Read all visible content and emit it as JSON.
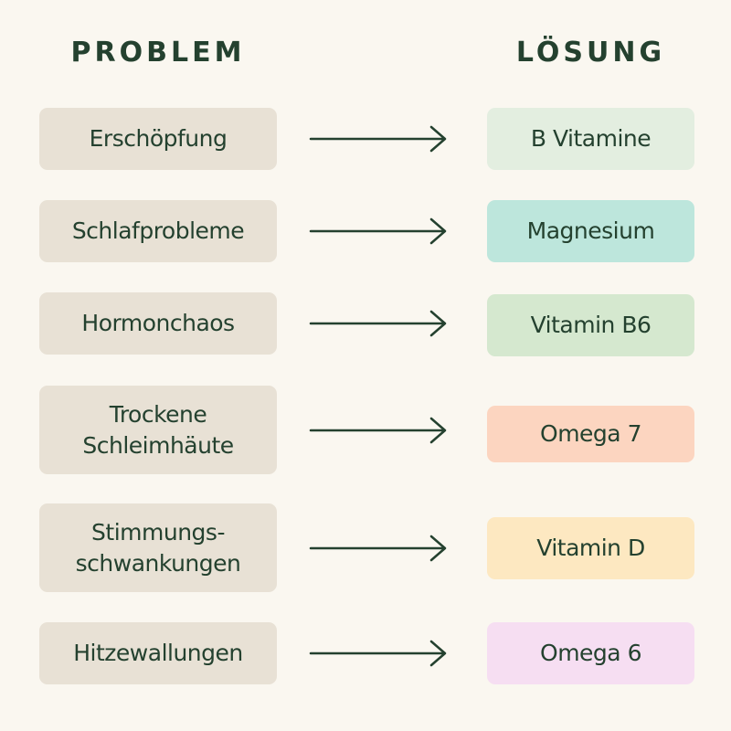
{
  "headers": {
    "problem": "PROBLEM",
    "solution": "LÖSUNG"
  },
  "colors": {
    "background": "#faf7f0",
    "problem_box": "#e8e1d5",
    "text": "#24412f"
  },
  "rows": [
    {
      "problem": "Erschöpfung",
      "solution": "B Vitamine",
      "solution_color": "#e3eee0"
    },
    {
      "problem": "Schlafprobleme",
      "solution": "Magnesium",
      "solution_color": "#bde6dc"
    },
    {
      "problem": "Hormonchaos",
      "solution": "Vitamin B6",
      "solution_color": "#d5e8cf"
    },
    {
      "problem": "Trockene Schleimhäute",
      "solution": "Omega 7",
      "solution_color": "#fcd5c0"
    },
    {
      "problem": "Stimmungs- schwankungen",
      "solution": "Vitamin D",
      "solution_color": "#fde8c1"
    },
    {
      "problem": "Hitzewallungen",
      "solution": "Omega 6",
      "solution_color": "#f6def2"
    }
  ],
  "arrow_icon": "right-arrow-icon"
}
